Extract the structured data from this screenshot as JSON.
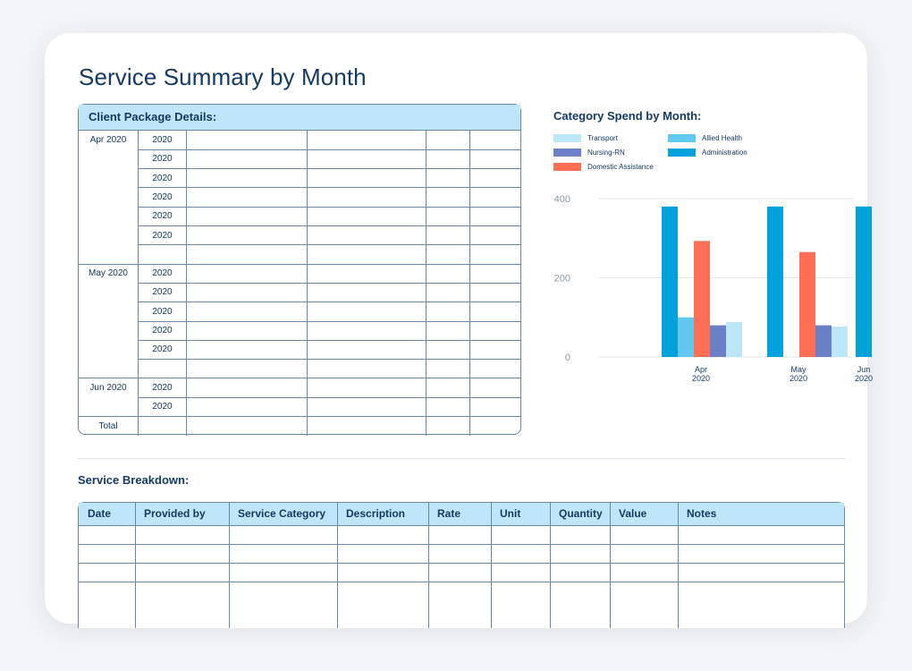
{
  "page": {
    "title": "Service Summary by Month"
  },
  "client_package": {
    "heading": "Client Package Details:",
    "groups": [
      {
        "month": "Apr 2020",
        "rows": [
          "2020",
          "2020",
          "2020",
          "2020",
          "2020",
          "2020",
          ""
        ]
      },
      {
        "month": "May 2020",
        "rows": [
          "2020",
          "2020",
          "2020",
          "2020",
          "2020",
          ""
        ]
      },
      {
        "month": "Jun 2020",
        "rows": [
          "2020",
          "2020"
        ]
      },
      {
        "month": "Total",
        "rows": [
          ""
        ]
      }
    ]
  },
  "chart": {
    "title": "Category Spend by Month:"
  },
  "chart_data": {
    "type": "bar",
    "categories": [
      "Apr 2020",
      "May 2020",
      "Jun 2020"
    ],
    "category_lines": [
      [
        "Apr",
        "2020"
      ],
      [
        "May",
        "2020"
      ],
      [
        "Jun",
        "2020"
      ]
    ],
    "series": [
      {
        "name": "Administration",
        "color": "#00a2dc",
        "values": [
          380,
          380,
          380
        ]
      },
      {
        "name": "Allied Health",
        "color": "#61c9ef",
        "values": [
          100,
          null,
          null
        ]
      },
      {
        "name": "Domestic Assistance",
        "color": "#ff6f55",
        "values": [
          293,
          265,
          null
        ]
      },
      {
        "name": "Nursing-RN",
        "color": "#6c80c8",
        "values": [
          80,
          80,
          null
        ]
      },
      {
        "name": "Transport",
        "color": "#bde7f8",
        "values": [
          88,
          77,
          null
        ]
      }
    ],
    "legend": [
      {
        "name": "Transport",
        "color": "#bde7f8"
      },
      {
        "name": "Allied Health",
        "color": "#61c9ef"
      },
      {
        "name": "Nursing-RN",
        "color": "#6c80c8"
      },
      {
        "name": "Administration",
        "color": "#00a2dc"
      },
      {
        "name": "Domestic Assistance",
        "color": "#ff6f55"
      }
    ],
    "yticks": [
      0,
      200,
      400
    ],
    "ylim": [
      0,
      400
    ],
    "grid": true,
    "legend_position": "top-left"
  },
  "breakdown": {
    "heading": "Service Breakdown:",
    "columns": [
      "Date",
      "Provided by",
      "Service Category",
      "Description",
      "Rate",
      "Unit",
      "Quantity",
      "Value",
      "Notes"
    ]
  }
}
